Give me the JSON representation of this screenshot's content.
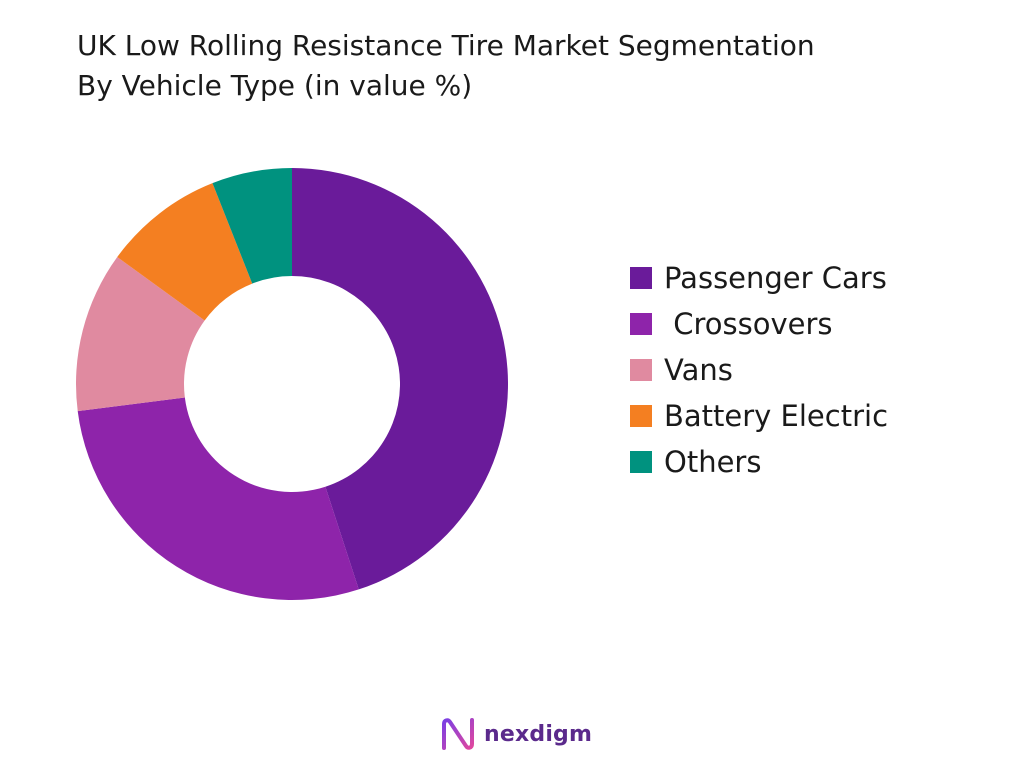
{
  "chart_data": {
    "type": "pie",
    "title": "UK Low Rolling Resistance Tire Market Segmentation By Vehicle Type (in value %)",
    "title_lines": [
      "UK Low Rolling Resistance Tire Market Segmentation",
      "By Vehicle Type (in value %)"
    ],
    "donut": true,
    "legend_position": "right",
    "categories": [
      "Passenger Cars",
      " Crossovers",
      "Vans",
      "Battery Electric",
      "Others"
    ],
    "values": [
      45,
      28,
      12,
      9,
      6
    ],
    "colors": [
      "#6a1b9a",
      "#8e24aa",
      "#e08aa0",
      "#f47f21",
      "#00927f"
    ]
  },
  "brand": {
    "name": "nexdigm",
    "logo_icon": "nexdigm-logo-icon"
  }
}
